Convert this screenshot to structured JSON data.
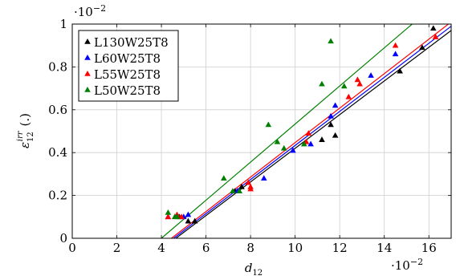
{
  "chart_data": {
    "type": "scatter",
    "x_axis": {
      "label_symbol": "d",
      "label_subscript": "12",
      "range": [
        0,
        0.17
      ],
      "ticks": [
        0,
        0.02,
        0.04,
        0.06,
        0.08,
        0.1,
        0.12,
        0.14,
        0.16
      ],
      "tick_labels": [
        "0",
        "2",
        "4",
        "6",
        "8",
        "10",
        "12",
        "14",
        "16"
      ],
      "multiplier_base": "·10",
      "multiplier_exp": "−2"
    },
    "y_axis": {
      "label_symbol": "ε",
      "label_subscript": "12",
      "label_superscript": "irr",
      "label_unit": "(.)",
      "range": [
        0,
        0.01
      ],
      "ticks": [
        0,
        0.002,
        0.004,
        0.006,
        0.008,
        0.01
      ],
      "tick_labels": [
        "0",
        "0.2",
        "0.4",
        "0.6",
        "0.8",
        "1"
      ],
      "multiplier_base": "·10",
      "multiplier_exp": "−2"
    },
    "grid": true,
    "legend_position": "top-left",
    "series": [
      {
        "name": "L130W25T8",
        "color": "#000000",
        "marker": "triangle",
        "points": [
          [
            0.048,
            0.001
          ],
          [
            0.052,
            0.0008
          ],
          [
            0.055,
            0.0008
          ],
          [
            0.073,
            0.0022
          ],
          [
            0.076,
            0.0024
          ],
          [
            0.112,
            0.0046
          ],
          [
            0.116,
            0.0053
          ],
          [
            0.118,
            0.0048
          ],
          [
            0.147,
            0.0078
          ],
          [
            0.157,
            0.0089
          ],
          [
            0.162,
            0.0098
          ]
        ],
        "fit_line": [
          [
            0.0465,
            0
          ],
          [
            0.17,
            0.0097
          ]
        ]
      },
      {
        "name": "L60W25T8",
        "color": "#0000ff",
        "marker": "triangle",
        "points": [
          [
            0.043,
            0.001
          ],
          [
            0.05,
            0.001
          ],
          [
            0.052,
            0.0011
          ],
          [
            0.074,
            0.0022
          ],
          [
            0.086,
            0.0028
          ],
          [
            0.099,
            0.0041
          ],
          [
            0.107,
            0.0044
          ],
          [
            0.116,
            0.0057
          ],
          [
            0.118,
            0.0062
          ],
          [
            0.134,
            0.0076
          ],
          [
            0.145,
            0.0086
          ]
        ],
        "fit_line": [
          [
            0.0455,
            0
          ],
          [
            0.17,
            0.0099
          ]
        ]
      },
      {
        "name": "L55W25T8",
        "color": "#ff0000",
        "marker": "triangle",
        "points": [
          [
            0.043,
            0.001
          ],
          [
            0.047,
            0.0011
          ],
          [
            0.049,
            0.001
          ],
          [
            0.079,
            0.0026
          ],
          [
            0.08,
            0.0024
          ],
          [
            0.08,
            0.0023
          ],
          [
            0.105,
            0.0045
          ],
          [
            0.106,
            0.0049
          ],
          [
            0.124,
            0.0066
          ],
          [
            0.128,
            0.0074
          ],
          [
            0.129,
            0.0072
          ],
          [
            0.145,
            0.009
          ],
          [
            0.163,
            0.0094
          ]
        ],
        "fit_line": [
          [
            0.0445,
            0
          ],
          [
            0.17,
            0.0101
          ]
        ]
      },
      {
        "name": "L50W25T8",
        "color": "#008000",
        "marker": "triangle",
        "points": [
          [
            0.043,
            0.0012
          ],
          [
            0.046,
            0.001
          ],
          [
            0.047,
            0.001
          ],
          [
            0.068,
            0.0028
          ],
          [
            0.072,
            0.0022
          ],
          [
            0.075,
            0.0022
          ],
          [
            0.088,
            0.0053
          ],
          [
            0.092,
            0.0045
          ],
          [
            0.095,
            0.0042
          ],
          [
            0.104,
            0.0044
          ],
          [
            0.112,
            0.0072
          ],
          [
            0.116,
            0.0092
          ],
          [
            0.122,
            0.0071
          ]
        ],
        "fit_line": [
          [
            0.04,
            0
          ],
          [
            0.1525,
            0.01
          ]
        ]
      }
    ]
  }
}
